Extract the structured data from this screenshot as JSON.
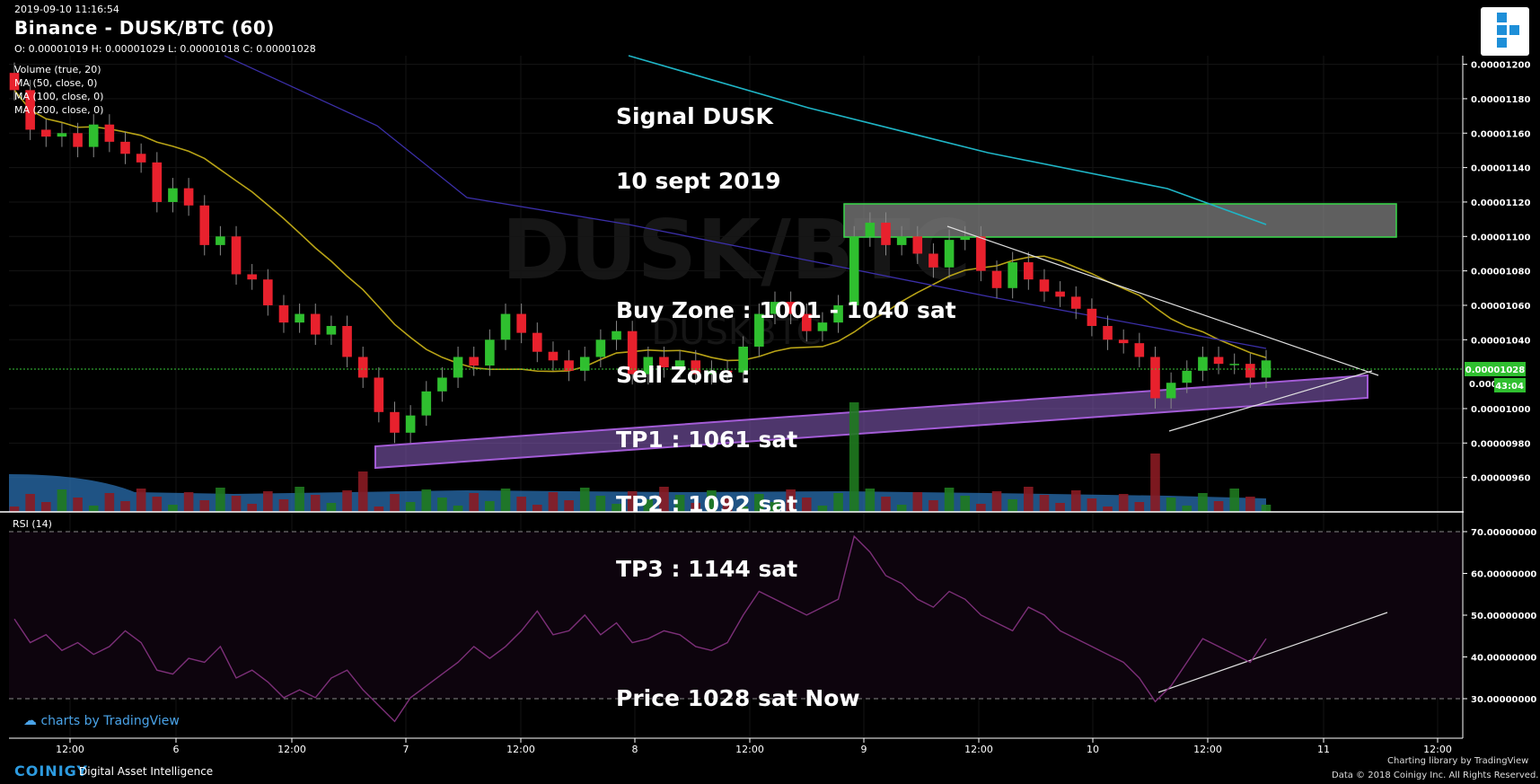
{
  "header": {
    "timestamp": "2019-09-10 11:16:54",
    "title": "Binance - DUSK/BTC (60)",
    "ohlc": "O: 0.00001019 H: 0.00001029 L: 0.00001018 C: 0.00001028"
  },
  "indicators": [
    "Volume (true, 20)",
    "MA (50, close, 0)",
    "MA (100, close, 0)",
    "MA (200, close, 0)"
  ],
  "watermark": {
    "main": "DUSK/BTC",
    "sub": "DUSKBTC"
  },
  "signal_box": {
    "lines": [
      "Signal DUSK",
      "10 sept 2019",
      "",
      "Buy Zone : 1001 - 1040 sat",
      "Sell Zone :",
      "TP1 : 1061 sat",
      "TP2 : 1092 sat",
      "TP3 : 1144 sat",
      "",
      "Price 1028 sat Now"
    ]
  },
  "price_axis": {
    "ticks": [
      "0.00001200",
      "0.00001180",
      "0.00001160",
      "0.00001140",
      "0.00001120",
      "0.00001100",
      "0.00001080",
      "0.00001060",
      "0.00001040",
      "0.00001000",
      "0.00000980",
      "0.00000960"
    ],
    "current_price": "0.00001028",
    "countdown": "43:04",
    "partial_tick": "0.000"
  },
  "rsi": {
    "label": "RSI (14)",
    "ticks": [
      "70.00000000",
      "60.00000000",
      "50.00000000",
      "40.00000000",
      "30.00000000"
    ]
  },
  "time_axis": [
    "12:00",
    "6",
    "12:00",
    "7",
    "12:00",
    "8",
    "12:00",
    "9",
    "12:00",
    "10",
    "12:00",
    "11",
    "12:00"
  ],
  "footer": {
    "tradingview": "charts by TradingView",
    "coinigy": "COINIGY",
    "coinigy_tag": "Digital Asset Intelligence",
    "charting_library": "Charting library by   TradingView",
    "data_credit": "Data © 2018   Coinigy Inc. All Rights Reserved."
  },
  "colors": {
    "bull": "#2fbf2f",
    "bear": "#e8212d",
    "ma50": "#b8a316",
    "ma100": "#3b2fa8",
    "ma200": "#1fb5c6",
    "rsi": "#7c2f78",
    "zone_purple": "#8e62c4",
    "zone_gray": "#7f7f7f",
    "zone_green_border": "#39d94a"
  },
  "chart_data": {
    "type": "candlestick",
    "pair": "DUSK/BTC",
    "interval": "60",
    "price_unit": "BTC",
    "x_ticks": [
      "12:00",
      "6",
      "12:00",
      "7",
      "12:00",
      "8",
      "12:00",
      "9",
      "12:00",
      "10",
      "12:00",
      "11",
      "12:00"
    ],
    "y_range": [
      9.4e-06,
      1.205e-05
    ],
    "candles_close": [
      1.185e-05,
      1.162e-05,
      1.158e-05,
      1.16e-05,
      1.152e-05,
      1.165e-05,
      1.155e-05,
      1.148e-05,
      1.143e-05,
      1.12e-05,
      1.128e-05,
      1.118e-05,
      1.095e-05,
      1.1e-05,
      1.078e-05,
      1.075e-05,
      1.06e-05,
      1.05e-05,
      1.055e-05,
      1.043e-05,
      1.048e-05,
      1.03e-05,
      1.018e-05,
      9.98e-06,
      9.86e-06,
      9.96e-06,
      1.01e-05,
      1.018e-05,
      1.03e-05,
      1.025e-05,
      1.04e-05,
      1.055e-05,
      1.044e-05,
      1.033e-05,
      1.028e-05,
      1.022e-05,
      1.03e-05,
      1.04e-05,
      1.045e-05,
      1.02e-05,
      1.03e-05,
      1.024e-05,
      1.028e-05,
      1.02e-05,
      1.022e-05,
      1.021e-05,
      1.036e-05,
      1.055e-05,
      1.062e-05,
      1.055e-05,
      1.045e-05,
      1.05e-05,
      1.06e-05,
      1.1e-05,
      1.108e-05,
      1.095e-05,
      1.1e-05,
      1.09e-05,
      1.082e-05,
      1.098e-05,
      1.1e-05,
      1.08e-05,
      1.07e-05,
      1.085e-05,
      1.075e-05,
      1.068e-05,
      1.065e-05,
      1.058e-05,
      1.048e-05,
      1.04e-05,
      1.038e-05,
      1.03e-05,
      1.006e-05,
      1.015e-05,
      1.022e-05,
      1.03e-05,
      1.026e-05,
      1.026e-05,
      1.018e-05,
      1.028e-05
    ],
    "buy_zone_sat": [
      1001,
      1040
    ],
    "take_profit_sat": [
      1061,
      1092,
      1144
    ],
    "current_price_sat": 1028,
    "rsi": [
      51,
      45,
      47,
      43,
      45,
      42,
      44,
      48,
      45,
      38,
      37,
      41,
      40,
      44,
      36,
      38,
      35,
      31,
      33,
      31,
      36,
      38,
      33,
      29,
      25,
      31,
      34,
      37,
      40,
      44,
      41,
      44,
      48,
      53,
      47,
      48,
      52,
      47,
      50,
      45,
      46,
      48,
      47,
      44,
      43,
      45,
      52,
      58,
      56,
      54,
      52,
      54,
      56,
      72,
      68,
      62,
      60,
      56,
      54,
      58,
      56,
      52,
      50,
      48,
      54,
      52,
      48,
      46,
      44,
      42,
      40,
      36,
      30,
      34,
      40,
      46,
      44,
      42,
      40,
      46
    ],
    "rsi_range": [
      23,
      75
    ],
    "rsi_levels": [
      70,
      30
    ]
  }
}
